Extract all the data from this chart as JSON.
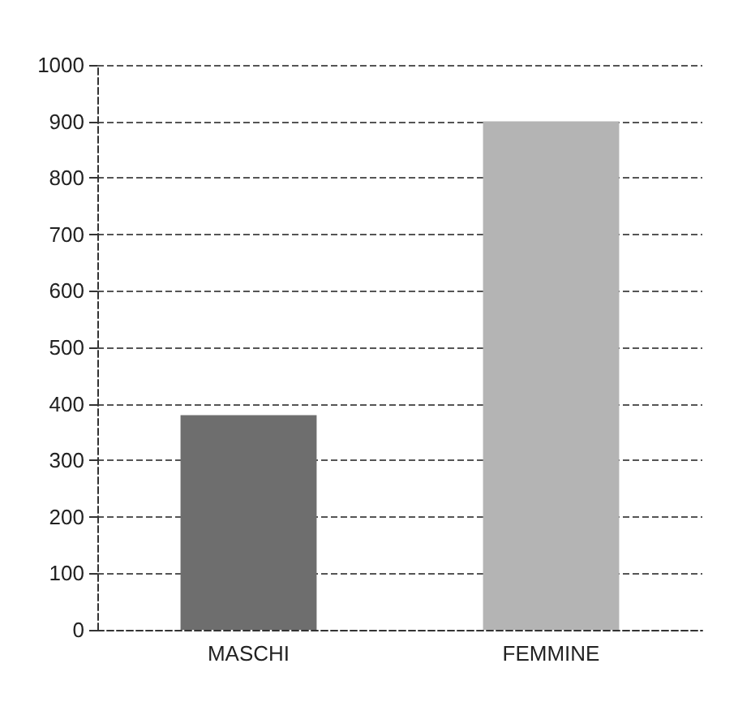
{
  "chart_data": {
    "type": "bar",
    "categories": [
      "MASCHI",
      "FEMMINE"
    ],
    "values": [
      380,
      900
    ],
    "colors": [
      "#6e6e6e",
      "#b4b4b4"
    ],
    "ylim": [
      0,
      1000
    ],
    "yticks": [
      0,
      100,
      200,
      300,
      400,
      500,
      600,
      700,
      800,
      900,
      1000
    ],
    "grid": "y"
  }
}
